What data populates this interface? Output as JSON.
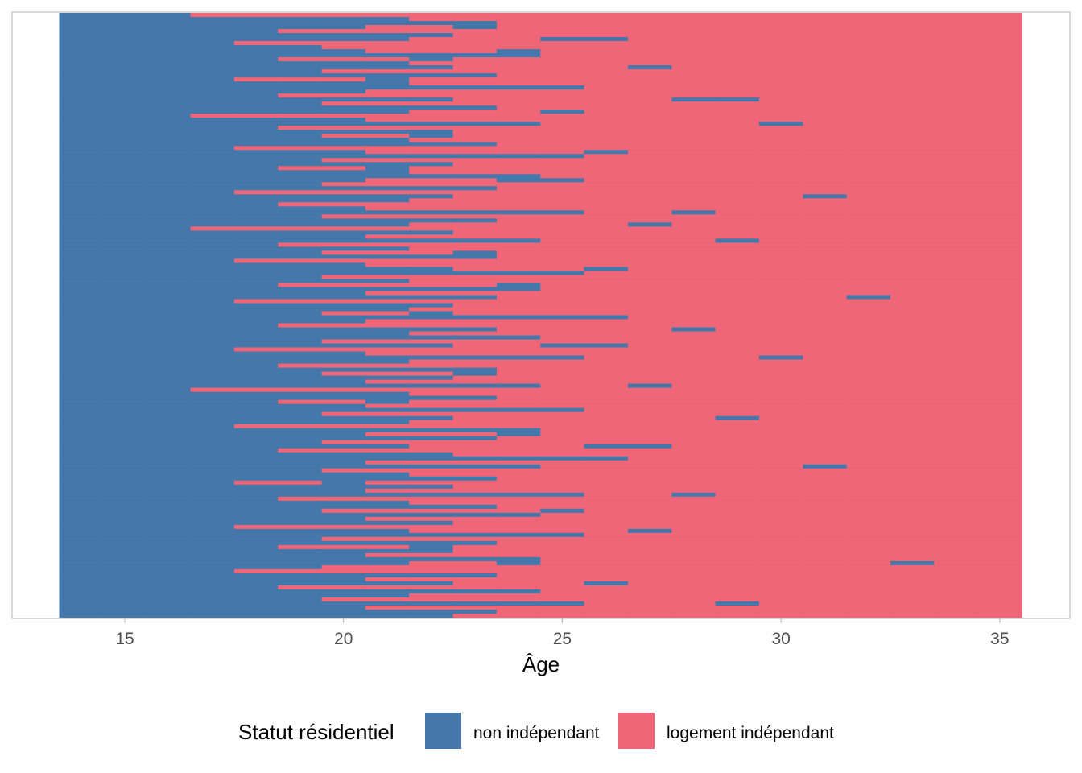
{
  "chart_data": {
    "type": "heatmap",
    "subtype": "sequence-index-plot",
    "title": "",
    "xlabel": "Âge",
    "ylabel": "",
    "x_ticks": [
      15,
      20,
      25,
      30,
      35
    ],
    "x_tick_labels": [
      "15",
      "20",
      "25",
      "30",
      "35"
    ],
    "xlim": [
      13.5,
      35.5
    ],
    "ages": [
      14,
      35
    ],
    "n_sequences": 150,
    "grid": false,
    "legend": {
      "title": "Statut résidentiel",
      "position": "bottom",
      "entries": [
        {
          "label": "non indépendant",
          "color": "#4477AA"
        },
        {
          "label": "logement indépendant",
          "color": "#EE6677"
        }
      ]
    },
    "states": [
      "non indépendant",
      "logement indépendant"
    ],
    "sequences_encoding": "each sequence = [age of first year in logement indépendant, list of [age, state] return spells]",
    "sequences": [
      [
        17,
        []
      ],
      [
        22,
        []
      ],
      [
        24,
        [
          [
            20,
            0
          ]
        ]
      ],
      [
        21,
        [
          [
            23,
            0
          ]
        ]
      ],
      [
        19,
        []
      ],
      [
        23,
        []
      ],
      [
        22,
        [
          [
            25,
            0
          ],
          [
            26,
            0
          ]
        ]
      ],
      [
        18,
        []
      ],
      [
        20,
        []
      ],
      [
        21,
        [
          [
            24,
            0
          ]
        ]
      ],
      [
        25,
        []
      ],
      [
        19,
        [
          [
            22,
            0
          ]
        ]
      ],
      [
        22,
        []
      ],
      [
        23,
        [
          [
            27,
            0
          ]
        ]
      ],
      [
        20,
        []
      ],
      [
        24,
        []
      ],
      [
        18,
        [
          [
            21,
            0
          ]
        ]
      ],
      [
        22,
        []
      ],
      [
        26,
        []
      ],
      [
        21,
        []
      ],
      [
        19,
        []
      ],
      [
        23,
        [
          [
            28,
            0
          ],
          [
            29,
            0
          ]
        ]
      ],
      [
        20,
        []
      ],
      [
        24,
        []
      ],
      [
        22,
        [
          [
            25,
            0
          ]
        ]
      ],
      [
        17,
        []
      ],
      [
        21,
        []
      ],
      [
        25,
        [
          [
            30,
            0
          ]
        ]
      ],
      [
        19,
        []
      ],
      [
        23,
        []
      ],
      [
        20,
        [
          [
            22,
            0
          ]
        ]
      ],
      [
        22,
        []
      ],
      [
        24,
        []
      ],
      [
        18,
        []
      ],
      [
        21,
        [
          [
            26,
            0
          ]
        ]
      ],
      [
        26,
        []
      ],
      [
        20,
        []
      ],
      [
        23,
        []
      ],
      [
        19,
        [
          [
            21,
            0
          ]
        ]
      ],
      [
        22,
        []
      ],
      [
        25,
        []
      ],
      [
        21,
        [
          [
            24,
            0
          ],
          [
            25,
            0
          ]
        ]
      ],
      [
        20,
        []
      ],
      [
        24,
        []
      ],
      [
        18,
        []
      ],
      [
        23,
        [
          [
            31,
            0
          ]
        ]
      ],
      [
        22,
        []
      ],
      [
        19,
        []
      ],
      [
        21,
        []
      ],
      [
        26,
        [
          [
            28,
            0
          ]
        ]
      ],
      [
        20,
        []
      ],
      [
        24,
        []
      ],
      [
        22,
        [
          [
            27,
            0
          ]
        ]
      ],
      [
        17,
        []
      ],
      [
        23,
        []
      ],
      [
        21,
        []
      ],
      [
        25,
        [
          [
            29,
            0
          ]
        ]
      ],
      [
        19,
        []
      ],
      [
        22,
        []
      ],
      [
        20,
        [
          [
            23,
            0
          ]
        ]
      ],
      [
        24,
        []
      ],
      [
        18,
        []
      ],
      [
        21,
        []
      ],
      [
        23,
        [
          [
            26,
            0
          ]
        ]
      ],
      [
        26,
        []
      ],
      [
        20,
        []
      ],
      [
        22,
        []
      ],
      [
        19,
        [
          [
            24,
            0
          ]
        ]
      ],
      [
        25,
        []
      ],
      [
        21,
        []
      ],
      [
        24,
        [
          [
            32,
            0
          ]
        ]
      ],
      [
        18,
        []
      ],
      [
        23,
        []
      ],
      [
        22,
        []
      ],
      [
        20,
        [
          [
            22,
            0
          ]
        ]
      ],
      [
        27,
        []
      ],
      [
        21,
        []
      ],
      [
        19,
        []
      ],
      [
        24,
        [
          [
            28,
            0
          ]
        ]
      ],
      [
        22,
        []
      ],
      [
        25,
        []
      ],
      [
        20,
        []
      ],
      [
        23,
        [
          [
            25,
            0
          ],
          [
            26,
            0
          ]
        ]
      ],
      [
        18,
        []
      ],
      [
        21,
        []
      ],
      [
        26,
        [
          [
            30,
            0
          ]
        ]
      ],
      [
        22,
        []
      ],
      [
        19,
        []
      ],
      [
        24,
        []
      ],
      [
        20,
        [
          [
            23,
            0
          ]
        ]
      ],
      [
        23,
        []
      ],
      [
        21,
        []
      ],
      [
        25,
        [
          [
            27,
            0
          ]
        ]
      ],
      [
        17,
        []
      ],
      [
        22,
        []
      ],
      [
        24,
        []
      ],
      [
        19,
        [
          [
            21,
            0
          ]
        ]
      ],
      [
        21,
        []
      ],
      [
        26,
        []
      ],
      [
        20,
        []
      ],
      [
        23,
        [
          [
            29,
            0
          ]
        ]
      ],
      [
        22,
        []
      ],
      [
        18,
        []
      ],
      [
        25,
        []
      ],
      [
        21,
        [
          [
            24,
            0
          ]
        ]
      ],
      [
        24,
        []
      ],
      [
        20,
        []
      ],
      [
        22,
        [
          [
            26,
            0
          ],
          [
            27,
            0
          ]
        ]
      ],
      [
        19,
        []
      ],
      [
        23,
        []
      ],
      [
        27,
        []
      ],
      [
        21,
        []
      ],
      [
        25,
        [
          [
            31,
            0
          ]
        ]
      ],
      [
        20,
        []
      ],
      [
        22,
        []
      ],
      [
        24,
        []
      ],
      [
        18,
        [
          [
            20,
            0
          ]
        ]
      ],
      [
        23,
        []
      ],
      [
        21,
        []
      ],
      [
        26,
        [
          [
            28,
            0
          ]
        ]
      ],
      [
        19,
        []
      ],
      [
        22,
        []
      ],
      [
        24,
        []
      ],
      [
        20,
        [
          [
            25,
            0
          ]
        ]
      ],
      [
        25,
        []
      ],
      [
        21,
        []
      ],
      [
        23,
        []
      ],
      [
        18,
        []
      ],
      [
        22,
        [
          [
            27,
            0
          ]
        ]
      ],
      [
        26,
        []
      ],
      [
        20,
        []
      ],
      [
        24,
        []
      ],
      [
        19,
        [
          [
            22,
            0
          ]
        ]
      ],
      [
        23,
        []
      ],
      [
        21,
        []
      ],
      [
        25,
        []
      ],
      [
        22,
        [
          [
            24,
            0
          ],
          [
            33,
            0
          ]
        ]
      ],
      [
        20,
        []
      ],
      [
        18,
        []
      ],
      [
        24,
        []
      ],
      [
        21,
        []
      ],
      [
        23,
        [
          [
            26,
            0
          ]
        ]
      ],
      [
        19,
        []
      ],
      [
        25,
        []
      ],
      [
        22,
        []
      ],
      [
        20,
        []
      ],
      [
        26,
        [
          [
            29,
            0
          ]
        ]
      ],
      [
        21,
        []
      ],
      [
        24,
        []
      ],
      [
        23,
        []
      ]
    ]
  }
}
